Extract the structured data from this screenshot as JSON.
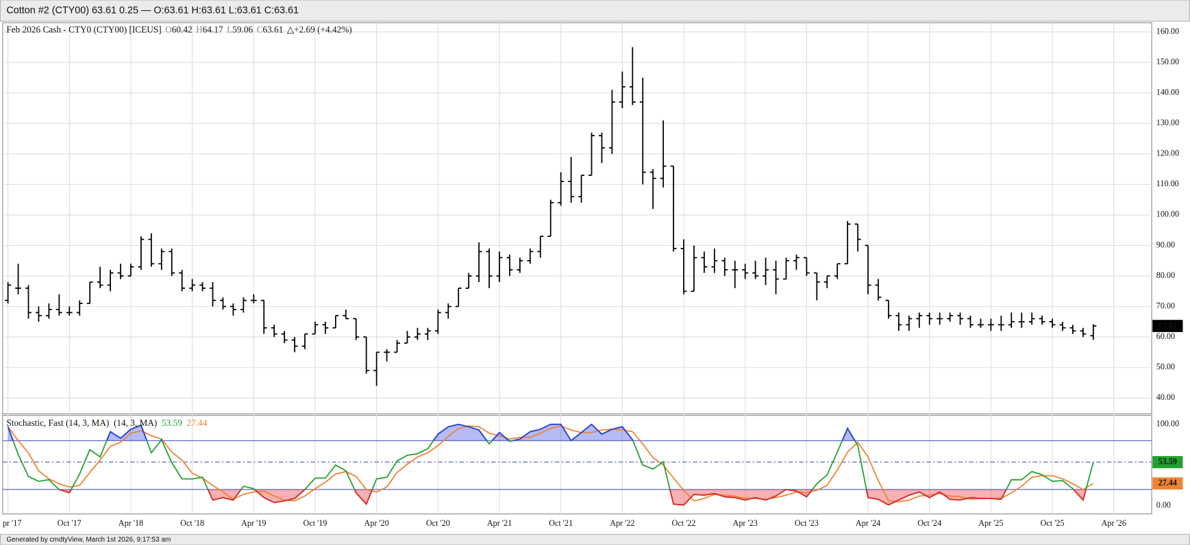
{
  "footer": "Generated by cmdtyView, March 1st 2026, 9:17:53 am",
  "chart_data": {
    "type": "ohlc",
    "title": "Cotton #2 (CTY00) 63.61 0.25 — O:63.61 H:63.61 L:63.61 C:63.61",
    "grid": true,
    "legend": {
      "prefixes": [
        "O",
        "H",
        "L",
        "C"
      ],
      "change": "△+2.69 (+4.42%)"
    },
    "x": [
      "2017-04",
      "2017-05",
      "2017-06",
      "2017-07",
      "2017-08",
      "2017-09",
      "2017-10",
      "2017-11",
      "2017-12",
      "2018-01",
      "2018-02",
      "2018-03",
      "2018-04",
      "2018-05",
      "2018-06",
      "2018-07",
      "2018-08",
      "2018-09",
      "2018-10",
      "2018-11",
      "2018-12",
      "2019-01",
      "2019-02",
      "2019-03",
      "2019-04",
      "2019-05",
      "2019-06",
      "2019-07",
      "2019-08",
      "2019-09",
      "2019-10",
      "2019-11",
      "2019-12",
      "2020-01",
      "2020-02",
      "2020-03",
      "2020-04",
      "2020-05",
      "2020-06",
      "2020-07",
      "2020-08",
      "2020-09",
      "2020-10",
      "2020-11",
      "2020-12",
      "2021-01",
      "2021-02",
      "2021-03",
      "2021-04",
      "2021-05",
      "2021-06",
      "2021-07",
      "2021-08",
      "2021-09",
      "2021-10",
      "2021-11",
      "2021-12",
      "2022-01",
      "2022-02",
      "2022-03",
      "2022-04",
      "2022-05",
      "2022-06",
      "2022-07",
      "2022-08",
      "2022-09",
      "2022-10",
      "2022-11",
      "2022-12",
      "2023-01",
      "2023-02",
      "2023-03",
      "2023-04",
      "2023-05",
      "2023-06",
      "2023-07",
      "2023-08",
      "2023-09",
      "2023-10",
      "2023-11",
      "2023-12",
      "2024-01",
      "2024-02",
      "2024-03",
      "2024-04",
      "2024-05",
      "2024-06",
      "2024-07",
      "2024-08",
      "2024-09",
      "2024-10",
      "2024-11",
      "2024-12",
      "2025-01",
      "2025-02",
      "2025-03",
      "2025-04",
      "2025-05",
      "2025-06",
      "2025-07",
      "2025-08",
      "2025-09",
      "2025-10",
      "2025-11",
      "2025-12",
      "2026-01",
      "2026-02"
    ],
    "xticks": [
      {
        "value": "2017-04",
        "label": "pr '17"
      },
      {
        "value": "2017-10",
        "label": "Oct '17"
      },
      {
        "value": "2018-04",
        "label": "Apr '18"
      },
      {
        "value": "2018-10",
        "label": "Oct '18"
      },
      {
        "value": "2019-04",
        "label": "Apr '19"
      },
      {
        "value": "2019-10",
        "label": "Oct '19"
      },
      {
        "value": "2020-04",
        "label": "Apr '20"
      },
      {
        "value": "2020-10",
        "label": "Oct '20"
      },
      {
        "value": "2021-04",
        "label": "Apr '21"
      },
      {
        "value": "2021-10",
        "label": "Oct '21"
      },
      {
        "value": "2022-04",
        "label": "Apr '22"
      },
      {
        "value": "2022-10",
        "label": "Oct '22"
      },
      {
        "value": "2023-04",
        "label": "Apr '23"
      },
      {
        "value": "2023-10",
        "label": "Oct '23"
      },
      {
        "value": "2024-04",
        "label": "Apr '24"
      },
      {
        "value": "2024-10",
        "label": "Oct '24"
      },
      {
        "value": "2025-04",
        "label": "Apr '25"
      },
      {
        "value": "2025-10",
        "label": "Oct '25"
      },
      {
        "value": "2026-04",
        "label": "Apr '26"
      }
    ],
    "ylim": [
      34.8,
      163
    ],
    "yticks": [
      {
        "value": 40,
        "label": "40.00"
      },
      {
        "value": 50,
        "label": "50.00"
      },
      {
        "value": 60,
        "label": "60.00"
      },
      {
        "value": 70,
        "label": "70.00"
      },
      {
        "value": 80,
        "label": "80.00"
      },
      {
        "value": 90,
        "label": "90.00"
      },
      {
        "value": 100,
        "label": "100.00"
      },
      {
        "value": 110,
        "label": "110.00"
      },
      {
        "value": 120,
        "label": "120.00"
      },
      {
        "value": 130,
        "label": "130.00"
      },
      {
        "value": 140,
        "label": "140.00"
      },
      {
        "value": 150,
        "label": "150.00"
      },
      {
        "value": 160,
        "label": "160.00"
      }
    ],
    "series": [
      {
        "name": "Feb 2026 Cash - CTY0 (CTY00) [ICEUS]",
        "color": "#000000",
        "open": [
          72,
          76,
          76,
          68,
          67,
          69,
          68,
          68,
          71,
          78,
          77,
          81,
          80,
          83,
          92,
          84,
          88,
          81,
          76,
          77,
          76,
          72,
          70,
          69,
          72,
          72,
          63,
          61,
          59,
          57,
          61,
          64,
          63,
          67,
          66,
          60,
          49,
          55,
          55,
          58,
          60,
          61,
          62,
          68,
          70,
          76,
          80,
          88,
          80,
          86,
          82,
          85,
          88,
          93,
          104,
          111,
          106,
          113,
          126,
          122,
          137,
          142,
          137,
          114,
          112,
          116,
          89,
          75,
          86,
          83,
          85,
          82,
          82,
          81,
          80,
          82,
          79,
          85,
          86,
          81,
          78,
          80,
          84,
          97,
          90,
          77,
          72,
          67,
          64,
          66,
          67,
          66,
          66,
          67,
          66,
          64,
          64,
          64,
          64,
          65,
          65,
          66,
          65,
          64,
          63,
          62,
          60.42
        ],
        "high": [
          78,
          84,
          77,
          70,
          71,
          74,
          70,
          72,
          78,
          83,
          82,
          84,
          84,
          93,
          94,
          89,
          89,
          82,
          79,
          78,
          78,
          73,
          71,
          73,
          74,
          72,
          64,
          62,
          60,
          61,
          65,
          65,
          67,
          69,
          66,
          60,
          55,
          56,
          59,
          62,
          63,
          63,
          69,
          71,
          76,
          81,
          91,
          89,
          88,
          87,
          86,
          89,
          93,
          105,
          114,
          119,
          113,
          127,
          127,
          141,
          147,
          155,
          145,
          115,
          131,
          116,
          92,
          90,
          88,
          89,
          86,
          85,
          84,
          85,
          86,
          85,
          86,
          87,
          86,
          81,
          80,
          84,
          98,
          97,
          90,
          79,
          72,
          68,
          67,
          68,
          68,
          68,
          68,
          68,
          67,
          66,
          66,
          67,
          68,
          68,
          68,
          67,
          66,
          65,
          64,
          63,
          64.17
        ],
        "low": [
          71,
          74,
          66,
          65,
          66,
          67,
          67,
          67,
          71,
          76,
          75,
          79,
          80,
          82,
          83,
          82,
          80,
          75,
          75,
          75,
          70,
          69,
          67,
          68,
          71,
          61,
          60,
          58,
          55,
          56,
          61,
          61,
          63,
          66,
          59,
          48,
          44,
          52,
          55,
          58,
          59,
          59,
          61,
          66,
          70,
          76,
          78,
          76,
          78,
          80,
          81,
          84,
          86,
          93,
          103,
          104,
          104,
          113,
          117,
          120,
          135,
          136,
          110,
          102,
          109,
          88,
          74,
          75,
          81,
          81,
          80,
          76,
          79,
          79,
          77,
          74,
          79,
          82,
          80,
          72,
          76,
          79,
          84,
          88,
          74,
          72,
          66,
          62,
          62,
          63,
          64,
          64,
          65,
          64,
          63,
          63,
          62,
          62,
          63,
          63,
          64,
          64,
          63,
          62,
          61,
          60,
          59.06
        ],
        "close": [
          77,
          76,
          68,
          67,
          69,
          68,
          68,
          71,
          78,
          77,
          81,
          80,
          83,
          92,
          84,
          88,
          81,
          76,
          77,
          76,
          72,
          70,
          69,
          72,
          72,
          63,
          61,
          59,
          57,
          61,
          64,
          63,
          67,
          66,
          60,
          49,
          55,
          55,
          58,
          60,
          61,
          62,
          68,
          70,
          76,
          80,
          88,
          80,
          86,
          82,
          85,
          88,
          93,
          104,
          111,
          106,
          113,
          126,
          122,
          137,
          142,
          137,
          114,
          112,
          116,
          89,
          75,
          86,
          83,
          85,
          82,
          82,
          81,
          80,
          82,
          79,
          85,
          86,
          81,
          78,
          80,
          84,
          97,
          92,
          77,
          73,
          67,
          64,
          66,
          67,
          66,
          66,
          67,
          66,
          64,
          64,
          64,
          64,
          65,
          65,
          66,
          65,
          64,
          63,
          62,
          61,
          63.61
        ]
      }
    ],
    "indicator": {
      "type": "line",
      "title": "Stochastic, Fast (14, 3, MA)  (14, 3, MA)",
      "ylim": [
        -10,
        111
      ],
      "yticks": [
        {
          "value": 0,
          "label": "0.00"
        },
        {
          "value": 100,
          "label": "100.00"
        }
      ],
      "levels": [
        80,
        20
      ],
      "overbought_color": "#2a3be0",
      "oversold_color": "#e8202a",
      "series": [
        {
          "color": "#22a02e",
          "values": [
            97,
            63,
            36,
            30,
            32,
            20,
            16,
            39,
            69,
            60,
            91,
            83,
            94,
            99,
            65,
            81,
            53,
            33,
            33,
            35,
            7,
            10,
            7,
            24,
            21,
            10,
            4,
            6,
            9,
            20,
            34,
            34,
            50,
            43,
            16,
            2,
            33,
            35,
            55,
            62,
            64,
            70,
            88,
            97,
            100,
            97,
            93,
            76,
            90,
            79,
            82,
            91,
            94,
            100,
            100,
            80,
            90,
            100,
            88,
            94,
            97,
            81,
            50,
            45,
            54,
            2,
            1,
            14,
            13,
            15,
            11,
            10,
            7,
            10,
            7,
            12,
            20,
            18,
            11,
            27,
            38,
            66,
            95,
            74,
            10,
            8,
            1,
            7,
            13,
            17,
            10,
            17,
            8,
            7,
            10,
            9,
            9,
            8,
            32,
            32,
            42,
            38,
            30,
            31,
            21,
            7,
            53.59
          ]
        },
        {
          "color": "#f0832f",
          "values": [
            97,
            80,
            65,
            43,
            33,
            27,
            23,
            25,
            41,
            56,
            73,
            78,
            89,
            92,
            86,
            82,
            66,
            56,
            40,
            34,
            25,
            17,
            8,
            14,
            17,
            18,
            12,
            7,
            6,
            12,
            21,
            29,
            39,
            42,
            36,
            20,
            17,
            23,
            41,
            51,
            60,
            65,
            74,
            85,
            95,
            98,
            97,
            89,
            86,
            82,
            84,
            84,
            89,
            95,
            98,
            93,
            90,
            90,
            93,
            94,
            93,
            91,
            76,
            59,
            50,
            34,
            19,
            6,
            9,
            14,
            13,
            12,
            9,
            9,
            8,
            10,
            13,
            17,
            16,
            19,
            25,
            44,
            66,
            78,
            60,
            31,
            6,
            5,
            7,
            12,
            13,
            15,
            12,
            11,
            8,
            9,
            9,
            9,
            16,
            24,
            35,
            37,
            37,
            33,
            27,
            20,
            27.44
          ]
        }
      ]
    }
  }
}
